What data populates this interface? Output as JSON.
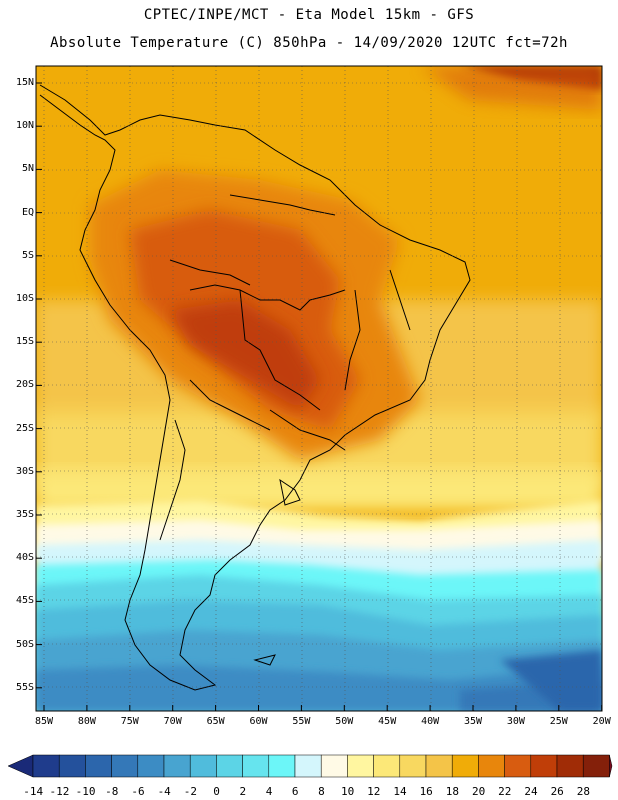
{
  "header": {
    "line1": "CPTEC/INPE/MCT -  Eta Model 15km - GFS",
    "line2": "Absolute Temperature (C) 850hPa - 14/09/2020 12UTC fct=72h"
  },
  "axes": {
    "lat_labels": [
      "15N",
      "10N",
      "5N",
      "EQ",
      "5S",
      "10S",
      "15S",
      "20S",
      "25S",
      "30S",
      "35S",
      "40S",
      "45S",
      "50S",
      "55S"
    ],
    "lon_labels": [
      "85W",
      "80W",
      "75W",
      "70W",
      "65W",
      "60W",
      "55W",
      "50W",
      "45W",
      "40W",
      "35W",
      "30W",
      "25W",
      "20W"
    ]
  },
  "colorbar": {
    "labels": [
      "-14",
      "-12",
      "-10",
      "-8",
      "-6",
      "-4",
      "-2",
      "0",
      "2",
      "4",
      "6",
      "8",
      "10",
      "12",
      "14",
      "16",
      "18",
      "20",
      "22",
      "24",
      "26",
      "28"
    ],
    "colors": [
      "#1f3c8c",
      "#24519c",
      "#2c66ac",
      "#3478b8",
      "#3c8cc4",
      "#48a4d0",
      "#50bcdc",
      "#5cd4e6",
      "#66e4ee",
      "#6cf6f8",
      "#d4f6fc",
      "#fffae6",
      "#fff6a0",
      "#fce878",
      "#f8d860",
      "#f4c448",
      "#f0ac08",
      "#e8860c",
      "#d85c10",
      "#c03e08",
      "#a02c06",
      "#84200a"
    ]
  }
}
